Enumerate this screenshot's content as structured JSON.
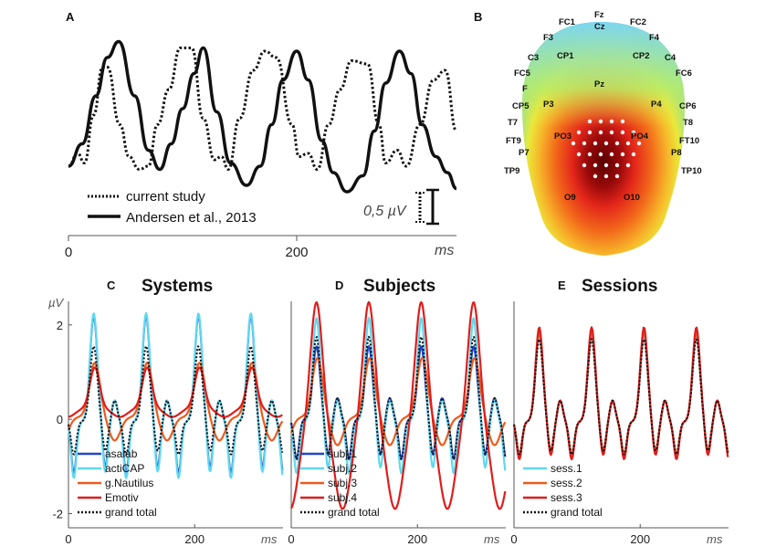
{
  "colors": {
    "asalab": "#2145cf",
    "acticap": "#5fd8ee",
    "gnautilus": "#ee5a1e",
    "emotiv": "#e01c1c",
    "subj1": "#2145cf",
    "subj2": "#5fd8ee",
    "subj3": "#ee5a1e",
    "subj4": "#e01c1c",
    "sess1": "#5fd8ee",
    "sess2": "#ee5a1e",
    "sess3": "#e01c1c",
    "total": "#111111"
  },
  "panels": {
    "A": {
      "label": "A"
    },
    "B": {
      "label": "B"
    },
    "C": {
      "label": "C",
      "title": "Systems"
    },
    "D": {
      "label": "D",
      "title": "Subjects"
    },
    "E": {
      "label": "E",
      "title": "Sessions"
    }
  },
  "scalebar": {
    "label": "0,5 µV"
  },
  "topo_labels": [
    "Fz",
    "Cz",
    "FC1",
    "FC2",
    "F3",
    "F4",
    "C3",
    "CP1",
    "CP2",
    "C4",
    "FC5",
    "FC6",
    "F",
    "Pz",
    "P3",
    "P4",
    "CP5",
    "CP6",
    "T7",
    "T8",
    "PO3",
    "PO4",
    "FT9",
    "FT10",
    "P7",
    "P8",
    "TP9",
    "TP10",
    "O9",
    "O10"
  ],
  "chart_data": [
    {
      "type": "line",
      "panel": "A",
      "xlabel": "ms",
      "xlim": [
        0,
        340
      ],
      "xticks": [
        0,
        200
      ],
      "series": [
        {
          "name": "current study",
          "style": "dotted",
          "x": [
            0,
            8,
            14,
            22,
            30,
            34,
            45,
            53,
            62,
            70,
            78,
            88,
            98,
            108,
            118,
            128,
            134,
            140,
            150,
            162,
            172,
            182,
            196,
            202,
            210,
            218,
            228,
            238,
            248,
            262,
            272,
            278,
            288,
            296,
            308,
            320,
            330,
            340
          ],
          "y": [
            -0.1,
            0.1,
            -0.05,
            0.7,
            1.45,
            1.45,
            0.55,
            0.05,
            -0.15,
            -0.1,
            0.55,
            1.1,
            1.75,
            1.75,
            0.65,
            0.0,
            0.05,
            -0.15,
            0.65,
            1.4,
            1.7,
            1.6,
            0.55,
            0.05,
            0.1,
            -0.15,
            0.55,
            1.1,
            1.55,
            1.5,
            0.55,
            -0.05,
            0.15,
            -0.1,
            0.55,
            1.25,
            1.4,
            0.45
          ]
        },
        {
          "name": "Andersen et al., 2013",
          "style": "solid",
          "x": [
            0,
            12,
            24,
            34,
            44,
            58,
            70,
            80,
            90,
            100,
            110,
            118,
            130,
            142,
            156,
            168,
            178,
            188,
            200,
            210,
            222,
            232,
            244,
            258,
            268,
            278,
            290,
            300,
            310,
            322,
            332,
            340
          ],
          "y": [
            -0.1,
            0.25,
            1.0,
            1.6,
            1.85,
            1.0,
            0.15,
            -0.15,
            0.25,
            0.8,
            1.35,
            1.75,
            0.75,
            -0.05,
            -0.4,
            -0.1,
            0.55,
            1.25,
            1.7,
            1.25,
            0.3,
            -0.2,
            -0.5,
            -0.25,
            0.45,
            1.2,
            1.7,
            1.35,
            0.55,
            0.05,
            -0.2,
            -0.45
          ]
        }
      ]
    },
    {
      "type": "line",
      "panel": "C",
      "ylabel": "µV",
      "xlabel": "ms",
      "ylim": [
        -2.3,
        2.5
      ],
      "yticks": [
        2,
        0,
        -2
      ],
      "xlim": [
        0,
        340
      ],
      "xticks": [
        0,
        200
      ],
      "series": [
        {
          "name": "asalab",
          "color": "#2145cf",
          "mode": "spiky",
          "amp": 2.2,
          "dip": -1.15,
          "base": -0.05
        },
        {
          "name": "actiCAP",
          "color": "#5fd8ee",
          "mode": "spiky",
          "amp": 2.25,
          "dip": -1.25,
          "base": -0.05
        },
        {
          "name": "g.Nautilus",
          "color": "#ee5a1e",
          "mode": "broad",
          "amp": 1.2,
          "dip": -0.45,
          "base": 0.05
        },
        {
          "name": "Emotiv",
          "color": "#e01c1c",
          "mode": "flat",
          "amp": 1.1,
          "dip": 0.05,
          "base": 0.25
        },
        {
          "name": "grand total",
          "color": "#111111",
          "mode": "dotted",
          "amp": 1.55,
          "dip": -0.75,
          "base": -0.05
        }
      ]
    },
    {
      "type": "line",
      "panel": "D",
      "xlabel": "ms",
      "ylim": [
        -2.3,
        2.5
      ],
      "xlim": [
        0,
        340
      ],
      "xticks": [
        0,
        200
      ],
      "series": [
        {
          "name": "subj.1",
          "color": "#2145cf",
          "mode": "spiky",
          "amp": 1.55,
          "dip": -0.85,
          "base": 0.0
        },
        {
          "name": "subj.2",
          "color": "#5fd8ee",
          "mode": "spiky",
          "amp": 2.15,
          "dip": -1.15,
          "base": -0.05
        },
        {
          "name": "subj.3",
          "color": "#ee5a1e",
          "mode": "broad",
          "amp": 1.3,
          "dip": -0.55,
          "base": 0.05
        },
        {
          "name": "subj.4",
          "color": "#e01c1c",
          "mode": "wide",
          "amp": 2.5,
          "dip": -1.9,
          "base": 0.1
        },
        {
          "name": "grand total",
          "color": "#111111",
          "mode": "dotted",
          "amp": 1.75,
          "dip": -0.85,
          "base": 0.0
        }
      ]
    },
    {
      "type": "line",
      "panel": "E",
      "xlabel": "ms",
      "ylim": [
        -2.3,
        2.5
      ],
      "xlim": [
        0,
        340
      ],
      "xticks": [
        0,
        200
      ],
      "series": [
        {
          "name": "sess.1",
          "color": "#5fd8ee",
          "mode": "spiky",
          "amp": 1.75,
          "dip": -0.75,
          "base": -0.05
        },
        {
          "name": "sess.2",
          "color": "#ee5a1e",
          "mode": "spiky",
          "amp": 1.85,
          "dip": -0.75,
          "base": -0.05
        },
        {
          "name": "sess.3",
          "color": "#e01c1c",
          "mode": "spiky",
          "amp": 1.95,
          "dip": -0.85,
          "base": -0.05
        },
        {
          "name": "grand total",
          "color": "#111111",
          "mode": "dotted",
          "amp": 1.7,
          "dip": -0.75,
          "base": -0.05
        }
      ]
    }
  ]
}
